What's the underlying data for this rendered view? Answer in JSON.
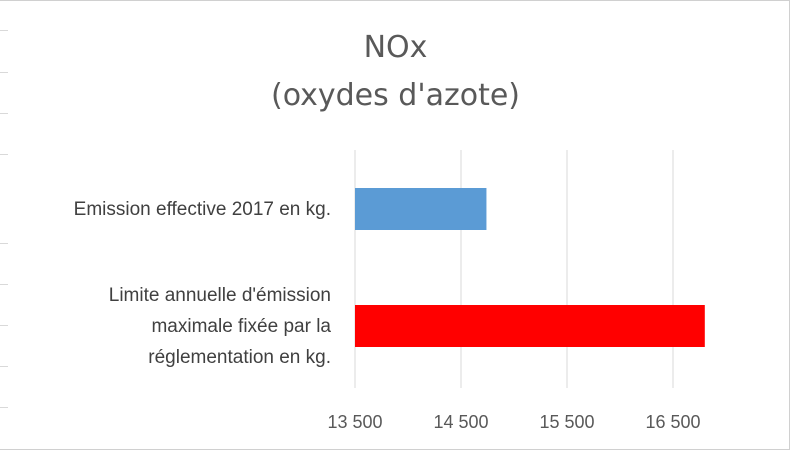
{
  "chart_data": {
    "type": "bar",
    "orientation": "horizontal",
    "title": "NOx",
    "subtitle": "(oxydes d'azote)",
    "categories": [
      {
        "lines": [
          "Emission effective 2017 en kg."
        ]
      },
      {
        "lines": [
          "Limite annuelle d'émission",
          "maximale fixée par la",
          "réglementation en kg."
        ]
      }
    ],
    "values": [
      14740,
      16800
    ],
    "colors": [
      "#5b9bd5",
      "#ff0000"
    ],
    "xlim": [
      13500,
      16800
    ],
    "ticks": [
      13500,
      14500,
      15500,
      16500
    ],
    "tick_labels": [
      "13 500",
      "14 500",
      "15 500",
      "16 500"
    ],
    "grid": true,
    "legend": "none"
  }
}
